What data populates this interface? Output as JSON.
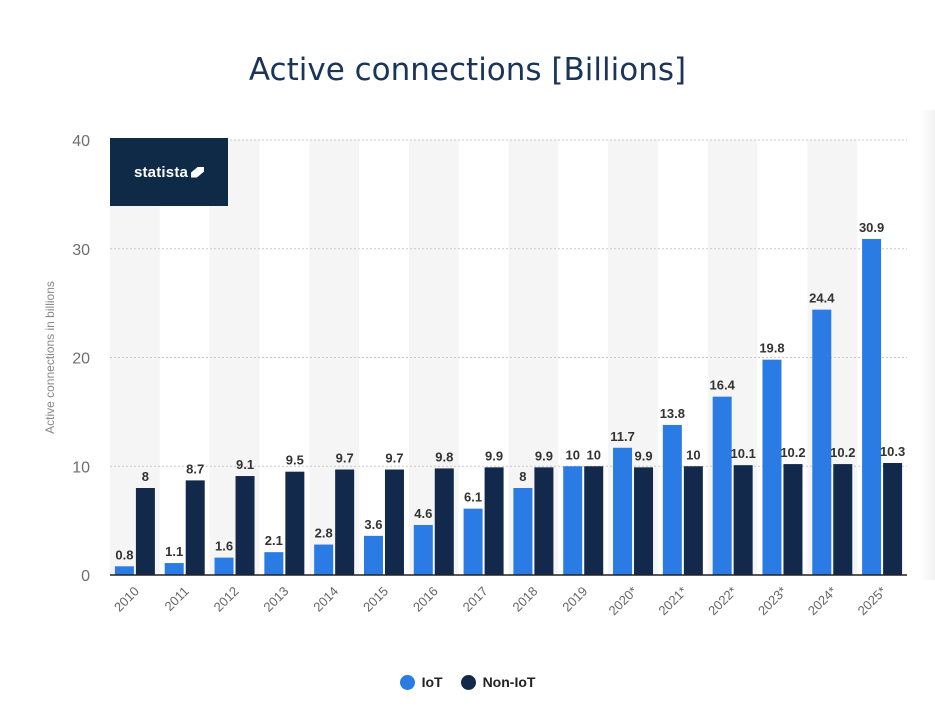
{
  "chart_data": {
    "type": "bar",
    "title": "Active connections [Billions]",
    "ylabel": "Active connections in billions",
    "xlabel": "",
    "ylim": [
      0,
      40
    ],
    "yticks": [
      0,
      10,
      20,
      30,
      40
    ],
    "grid": true,
    "legend_position": "bottom",
    "categories": [
      "2010",
      "2011",
      "2012",
      "2013",
      "2014",
      "2015",
      "2016",
      "2017",
      "2018",
      "2019",
      "2020*",
      "2021*",
      "2022*",
      "2023*",
      "2024*",
      "2025*"
    ],
    "series": [
      {
        "name": "IoT",
        "color": "#2a7be4",
        "values": [
          0.8,
          1.1,
          1.6,
          2.1,
          2.8,
          3.6,
          4.6,
          6.1,
          8,
          10,
          11.7,
          13.8,
          16.4,
          19.8,
          24.4,
          30.9
        ]
      },
      {
        "name": "Non-IoT",
        "color": "#13294b",
        "values": [
          8,
          8.7,
          9.1,
          9.5,
          9.7,
          9.7,
          9.8,
          9.9,
          9.9,
          10,
          9.9,
          10,
          10.1,
          10.2,
          10.2,
          10.3
        ]
      }
    ]
  },
  "logo": {
    "text": "statista"
  }
}
